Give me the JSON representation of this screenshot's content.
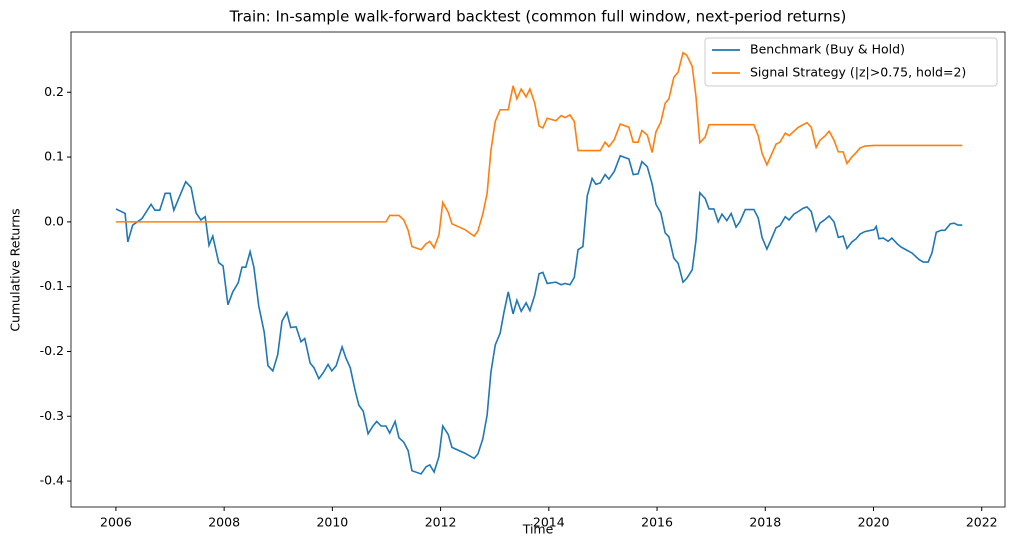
{
  "chart_data": {
    "type": "line",
    "title": "Train: In-sample walk-forward backtest (common full window, next-period returns)",
    "xlabel": "Time",
    "ylabel": "Cumulative Returns",
    "x": [
      2006.0,
      2006.17,
      2006.22,
      2006.31,
      2006.48,
      2006.65,
      2006.72,
      2006.81,
      2006.91,
      2007.0,
      2007.07,
      2007.29,
      2007.39,
      2007.48,
      2007.57,
      2007.65,
      2007.72,
      2007.79,
      2007.9,
      2007.98,
      2008.07,
      2008.16,
      2008.26,
      2008.33,
      2008.4,
      2008.48,
      2008.55,
      2008.64,
      2008.74,
      2008.81,
      2008.9,
      2008.99,
      2009.07,
      2009.16,
      2009.23,
      2009.33,
      2009.42,
      2009.49,
      2009.59,
      2009.66,
      2009.75,
      2009.83,
      2009.92,
      2009.99,
      2010.07,
      2010.18,
      2010.25,
      2010.33,
      2010.42,
      2010.49,
      2010.57,
      2010.66,
      2010.75,
      2010.82,
      2010.9,
      2010.99,
      2011.06,
      2011.16,
      2011.23,
      2011.32,
      2011.4,
      2011.47,
      2011.64,
      2011.73,
      2011.8,
      2011.88,
      2011.97,
      2012.04,
      2012.14,
      2012.21,
      2012.45,
      2012.62,
      2012.69,
      2012.78,
      2012.86,
      2012.93,
      2013.01,
      2013.1,
      2013.17,
      2013.25,
      2013.34,
      2013.41,
      2013.49,
      2013.58,
      2013.65,
      2013.74,
      2013.82,
      2013.89,
      2013.97,
      2014.13,
      2014.23,
      2014.3,
      2014.39,
      2014.47,
      2014.54,
      2014.63,
      2014.71,
      2014.8,
      2014.87,
      2014.95,
      2015.04,
      2015.11,
      2015.21,
      2015.32,
      2015.48,
      2015.56,
      2015.65,
      2015.72,
      2015.82,
      2015.91,
      2015.98,
      2016.07,
      2016.15,
      2016.22,
      2016.31,
      2016.39,
      2016.48,
      2016.55,
      2016.65,
      2016.72,
      2016.79,
      2016.89,
      2016.96,
      2017.05,
      2017.13,
      2017.2,
      2017.29,
      2017.37,
      2017.46,
      2017.53,
      2017.63,
      2017.79,
      2017.87,
      2017.94,
      2018.03,
      2018.11,
      2018.2,
      2018.27,
      2018.37,
      2018.44,
      2018.53,
      2018.61,
      2018.7,
      2018.77,
      2018.85,
      2018.94,
      2019.01,
      2019.11,
      2019.18,
      2019.27,
      2019.35,
      2019.44,
      2019.51,
      2019.6,
      2019.68,
      2019.75,
      2019.84,
      2020.01,
      2020.05,
      2020.1,
      2020.18,
      2020.27,
      2020.34,
      2020.44,
      2020.51,
      2020.6,
      2020.71,
      2020.84,
      2020.92,
      2021.01,
      2021.08,
      2021.16,
      2021.25,
      2021.32,
      2021.42,
      2021.49,
      2021.56,
      2021.64
    ],
    "series": [
      {
        "name": "Benchmark (Buy & Hold)",
        "color": "#1f77b4",
        "values": [
          0.02,
          0.013,
          -0.031,
          -0.005,
          0.005,
          0.027,
          0.018,
          0.018,
          0.044,
          0.044,
          0.018,
          0.062,
          0.053,
          0.014,
          0.003,
          0.008,
          -0.036,
          -0.022,
          -0.063,
          -0.068,
          -0.128,
          -0.108,
          -0.094,
          -0.07,
          -0.07,
          -0.046,
          -0.07,
          -0.13,
          -0.17,
          -0.222,
          -0.23,
          -0.205,
          -0.153,
          -0.14,
          -0.163,
          -0.162,
          -0.185,
          -0.18,
          -0.218,
          -0.225,
          -0.242,
          -0.233,
          -0.22,
          -0.23,
          -0.222,
          -0.193,
          -0.21,
          -0.225,
          -0.26,
          -0.283,
          -0.292,
          -0.327,
          -0.315,
          -0.308,
          -0.315,
          -0.315,
          -0.326,
          -0.308,
          -0.333,
          -0.34,
          -0.353,
          -0.384,
          -0.389,
          -0.378,
          -0.375,
          -0.386,
          -0.362,
          -0.315,
          -0.328,
          -0.348,
          -0.357,
          -0.365,
          -0.358,
          -0.335,
          -0.298,
          -0.232,
          -0.19,
          -0.172,
          -0.14,
          -0.108,
          -0.142,
          -0.121,
          -0.138,
          -0.125,
          -0.137,
          -0.113,
          -0.08,
          -0.078,
          -0.095,
          -0.093,
          -0.097,
          -0.095,
          -0.097,
          -0.086,
          -0.043,
          -0.038,
          0.04,
          0.067,
          0.058,
          0.06,
          0.073,
          0.066,
          0.078,
          0.102,
          0.097,
          0.073,
          0.074,
          0.093,
          0.085,
          0.058,
          0.027,
          0.014,
          -0.017,
          -0.023,
          -0.056,
          -0.064,
          -0.093,
          -0.087,
          -0.074,
          -0.028,
          0.045,
          0.036,
          0.02,
          0.02,
          0.0,
          0.012,
          0.002,
          0.013,
          -0.008,
          0.0,
          0.019,
          0.019,
          0.006,
          -0.024,
          -0.042,
          -0.027,
          -0.009,
          -0.006,
          0.008,
          0.003,
          0.012,
          0.016,
          0.021,
          0.023,
          0.016,
          -0.014,
          -0.002,
          0.004,
          0.009,
          0.0,
          -0.024,
          -0.022,
          -0.041,
          -0.031,
          -0.026,
          -0.019,
          -0.015,
          -0.012,
          -0.007,
          -0.026,
          -0.025,
          -0.03,
          -0.025,
          -0.034,
          -0.039,
          -0.043,
          -0.048,
          -0.058,
          -0.062,
          -0.062,
          -0.048,
          -0.016,
          -0.013,
          -0.013,
          -0.003,
          -0.002,
          -0.005,
          -0.005
        ]
      },
      {
        "name": "Signal Strategy (|z|>0.75, hold=2)",
        "color": "#ff7f0e",
        "values": [
          0,
          0,
          0,
          0,
          0,
          0,
          0,
          0,
          0,
          0,
          0,
          0,
          0,
          0,
          0,
          0,
          0,
          0,
          0,
          0,
          0,
          0,
          0,
          0,
          0,
          0,
          0,
          0,
          0,
          0,
          0,
          0,
          0,
          0,
          0,
          0,
          0,
          0,
          0,
          0,
          0,
          0,
          0,
          0,
          0,
          0,
          0,
          0,
          0,
          0,
          0,
          0,
          0,
          0,
          0,
          0,
          0.01,
          0.01,
          0.01,
          0.003,
          -0.013,
          -0.038,
          -0.043,
          -0.034,
          -0.03,
          -0.04,
          -0.02,
          0.03,
          0.015,
          -0.003,
          -0.012,
          -0.022,
          -0.014,
          0.012,
          0.044,
          0.11,
          0.155,
          0.173,
          0.173,
          0.173,
          0.21,
          0.19,
          0.205,
          0.193,
          0.205,
          0.183,
          0.148,
          0.145,
          0.16,
          0.156,
          0.164,
          0.161,
          0.165,
          0.155,
          0.11,
          0.11,
          0.11,
          0.11,
          0.11,
          0.11,
          0.123,
          0.116,
          0.127,
          0.151,
          0.146,
          0.123,
          0.123,
          0.141,
          0.134,
          0.107,
          0.139,
          0.154,
          0.183,
          0.19,
          0.223,
          0.231,
          0.261,
          0.257,
          0.24,
          0.193,
          0.122,
          0.131,
          0.15,
          0.15,
          0.15,
          0.15,
          0.15,
          0.15,
          0.15,
          0.15,
          0.15,
          0.15,
          0.133,
          0.106,
          0.088,
          0.103,
          0.12,
          0.123,
          0.137,
          0.133,
          0.14,
          0.146,
          0.15,
          0.153,
          0.146,
          0.115,
          0.126,
          0.133,
          0.14,
          0.126,
          0.108,
          0.108,
          0.09,
          0.1,
          0.107,
          0.114,
          0.117,
          0.118,
          0.118,
          0.118,
          0.118,
          0.118,
          0.118,
          0.118,
          0.118,
          0.118,
          0.118,
          0.118,
          0.118,
          0.118,
          0.118,
          0.118,
          0.118,
          0.118,
          0.118,
          0.118,
          0.118,
          0.118
        ]
      }
    ],
    "xlim": [
      2005.17,
      2022.43
    ],
    "ylim": [
      -0.44,
      0.293
    ],
    "xticks": [
      2006,
      2008,
      2010,
      2012,
      2014,
      2016,
      2018,
      2020,
      2022
    ],
    "yticks": [
      -0.4,
      -0.3,
      -0.2,
      -0.1,
      {
        "value": 0,
        "label": "0.0"
      },
      0.1,
      0.2
    ],
    "grid": false,
    "legend": "upper right"
  }
}
